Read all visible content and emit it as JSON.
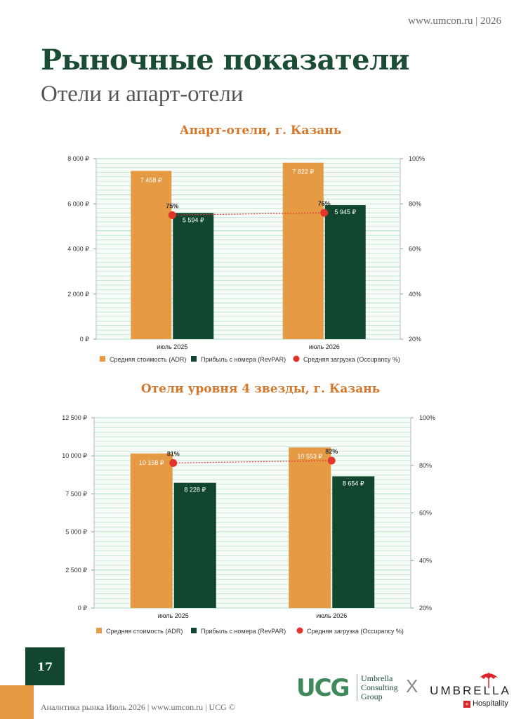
{
  "header": {
    "site": "www.umcon.ru | 2026"
  },
  "page": {
    "title": "Рыночные показатели",
    "subtitle": "Отели и апарт-отели",
    "page_number": "17",
    "footer": "Аналитика рынка Июль 2026 | www.umcon.ru | UCG ©"
  },
  "logos": {
    "ucg_text": "UCG",
    "ucg_name_lines": [
      "Umbrella",
      "Consulting",
      "Group"
    ],
    "cross": "X",
    "umbrella_text": "UMBRELLA",
    "hospitality": "Hospitality"
  },
  "colors": {
    "adr": "#e59a43",
    "revpar": "#12472f",
    "occupancy": "#e0352b",
    "grid": "#a8ddc0",
    "plot_bg": "#f7fbf8"
  },
  "legend": {
    "adr": "Средняя стоимость (ADR)",
    "revpar": "Прибыль с номера (RevPAR)",
    "occupancy": "Средняя загрузка (Occupancy %)"
  },
  "chart_data": [
    {
      "type": "bar",
      "title": "Апарт-отели, г. Казань",
      "categories": [
        "июль 2025",
        "июль 2026"
      ],
      "series": [
        {
          "name": "Средняя стоимость (ADR)",
          "values": [
            7458,
            7822
          ],
          "labels": [
            "7 458 ₽",
            "7 822 ₽"
          ]
        },
        {
          "name": "Прибыль с номера (RevPAR)",
          "values": [
            5594,
            5945
          ],
          "labels": [
            "5 594 ₽",
            "5 945 ₽"
          ]
        },
        {
          "name": "Средняя загрузка (Occupancy %)",
          "type": "line",
          "axis": "right",
          "values": [
            75,
            76
          ],
          "labels": [
            "75%",
            "76%"
          ]
        }
      ],
      "ylim": [
        0,
        8000
      ],
      "yticks": [
        "0 ₽",
        "2 000 ₽",
        "4 000 ₽",
        "6 000 ₽",
        "8 000 ₽"
      ],
      "y2lim": [
        20,
        100
      ],
      "y2ticks": [
        "20%",
        "40%",
        "60%",
        "80%",
        "100%"
      ],
      "grid": true,
      "legend_position": "bottom"
    },
    {
      "type": "bar",
      "title": "Отели уровня 4 звезды, г. Казань",
      "categories": [
        "июль 2025",
        "июль 2026"
      ],
      "series": [
        {
          "name": "Средняя стоимость (ADR)",
          "values": [
            10158,
            10553
          ],
          "labels": [
            "10 158 ₽",
            "10 553 ₽"
          ]
        },
        {
          "name": "Прибыль с номера (RevPAR)",
          "values": [
            8228,
            8654
          ],
          "labels": [
            "8 228 ₽",
            "8 654 ₽"
          ]
        },
        {
          "name": "Средняя загрузка (Occupancy %)",
          "type": "line",
          "axis": "right",
          "values": [
            81,
            82
          ],
          "labels": [
            "81%",
            "82%"
          ]
        }
      ],
      "ylim": [
        0,
        12500
      ],
      "yticks": [
        "0 ₽",
        "2 500 ₽",
        "5 000 ₽",
        "7 500 ₽",
        "10 000 ₽",
        "12 500 ₽"
      ],
      "y2lim": [
        20,
        100
      ],
      "y2ticks": [
        "20%",
        "40%",
        "60%",
        "80%",
        "100%"
      ],
      "grid": true,
      "legend_position": "bottom"
    }
  ]
}
